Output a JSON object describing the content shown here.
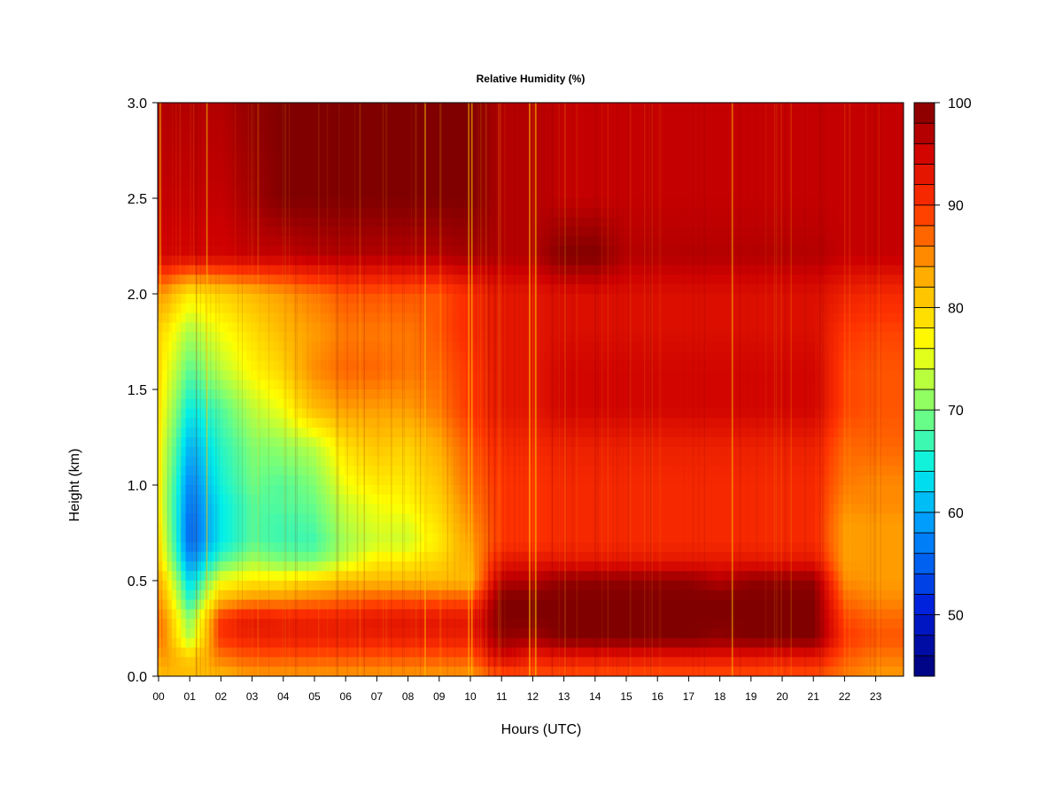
{
  "chart_data": {
    "type": "heatmap",
    "title": "Relative Humidity (%)",
    "xlabel": "Hours (UTC)",
    "ylabel": "Height (km)",
    "xlim": [
      0,
      24
    ],
    "ylim": [
      0.0,
      3.0
    ],
    "x_ticks": [
      "00",
      "01",
      "02",
      "03",
      "04",
      "05",
      "06",
      "07",
      "08",
      "09",
      "10",
      "11",
      "12",
      "13",
      "14",
      "15",
      "16",
      "17",
      "18",
      "19",
      "20",
      "21",
      "22",
      "23"
    ],
    "y_ticks": [
      "0.0",
      "0.5",
      "1.0",
      "1.5",
      "2.0",
      "2.5",
      "3.0"
    ],
    "hours": [
      0,
      1,
      2,
      3,
      4,
      5,
      6,
      7,
      8,
      9,
      10,
      11,
      12,
      13,
      14,
      15,
      16,
      17,
      18,
      19,
      20,
      21,
      22,
      23,
      24
    ],
    "heights_km": [
      0.0,
      0.1,
      0.2,
      0.3,
      0.4,
      0.5,
      0.6,
      0.7,
      0.8,
      0.9,
      1.0,
      1.2,
      1.4,
      1.6,
      1.8,
      2.0,
      2.2,
      2.5,
      3.0
    ],
    "rh_percent": [
      [
        82,
        82,
        82,
        84,
        84,
        84,
        84,
        84,
        84,
        84,
        84,
        88,
        88,
        88,
        88,
        88,
        88,
        88,
        88,
        88,
        88,
        88,
        86,
        84,
        84
      ],
      [
        85,
        80,
        86,
        88,
        88,
        88,
        88,
        88,
        88,
        88,
        88,
        95,
        92,
        93,
        93,
        93,
        93,
        93,
        93,
        93,
        93,
        93,
        88,
        86,
        86
      ],
      [
        88,
        72,
        90,
        92,
        92,
        92,
        92,
        92,
        92,
        92,
        92,
        99,
        98,
        100,
        100,
        100,
        100,
        100,
        99,
        100,
        100,
        100,
        90,
        88,
        88
      ],
      [
        88,
        70,
        90,
        93,
        92,
        92,
        92,
        93,
        93,
        93,
        93,
        100,
        100,
        100,
        100,
        100,
        100,
        100,
        100,
        100,
        100,
        100,
        89,
        87,
        87
      ],
      [
        86,
        65,
        82,
        85,
        85,
        86,
        87,
        88,
        88,
        88,
        88,
        100,
        100,
        100,
        100,
        100,
        100,
        100,
        100,
        100,
        100,
        100,
        87,
        85,
        85
      ],
      [
        84,
        62,
        76,
        78,
        78,
        80,
        82,
        82,
        82,
        82,
        82,
        97,
        97,
        99,
        99,
        99,
        99,
        99,
        97,
        99,
        99,
        99,
        85,
        84,
        84
      ],
      [
        80,
        58,
        68,
        72,
        70,
        70,
        74,
        78,
        78,
        80,
        83,
        93,
        93,
        93,
        93,
        93,
        93,
        93,
        93,
        93,
        93,
        93,
        84,
        84,
        84
      ],
      [
        79,
        55,
        64,
        68,
        67,
        67,
        72,
        74,
        74,
        78,
        84,
        90,
        90,
        91,
        91,
        91,
        91,
        91,
        91,
        91,
        91,
        91,
        84,
        84,
        84
      ],
      [
        78,
        55,
        64,
        68,
        67,
        68,
        73,
        75,
        75,
        79,
        85,
        90,
        90,
        91,
        91,
        91,
        91,
        91,
        91,
        91,
        91,
        91,
        84,
        84,
        84
      ],
      [
        77,
        56,
        64,
        68,
        68,
        69,
        74,
        76,
        77,
        80,
        86,
        90,
        90,
        91,
        91,
        91,
        91,
        91,
        91,
        91,
        91,
        91,
        85,
        85,
        85
      ],
      [
        77,
        57,
        65,
        69,
        68,
        70,
        76,
        78,
        78,
        81,
        87,
        90,
        90,
        91,
        91,
        91,
        91,
        91,
        91,
        91,
        91,
        91,
        86,
        85,
        85
      ],
      [
        77,
        60,
        66,
        70,
        71,
        73,
        79,
        81,
        80,
        83,
        88,
        91,
        91,
        92,
        92,
        92,
        92,
        92,
        92,
        92,
        92,
        92,
        87,
        87,
        87
      ],
      [
        78,
        64,
        68,
        73,
        76,
        82,
        84,
        84,
        84,
        86,
        90,
        93,
        93,
        95,
        95,
        95,
        95,
        95,
        95,
        95,
        95,
        95,
        89,
        88,
        88
      ],
      [
        79,
        68,
        73,
        77,
        80,
        85,
        87,
        87,
        86,
        87,
        90,
        93,
        93,
        95,
        95,
        95,
        95,
        95,
        95,
        95,
        95,
        95,
        89,
        88,
        88
      ],
      [
        80,
        72,
        76,
        79,
        82,
        84,
        86,
        86,
        86,
        88,
        91,
        93,
        93,
        94,
        94,
        94,
        94,
        94,
        94,
        94,
        94,
        94,
        90,
        89,
        89
      ],
      [
        85,
        78,
        80,
        82,
        84,
        86,
        88,
        88,
        88,
        88,
        91,
        93,
        93,
        94,
        94,
        94,
        94,
        94,
        94,
        94,
        94,
        94,
        92,
        91,
        91
      ],
      [
        95,
        95,
        95,
        96,
        96,
        97,
        97,
        97,
        97,
        97,
        98,
        97,
        97,
        100,
        100,
        97,
        97,
        97,
        97,
        97,
        97,
        97,
        96,
        96,
        96
      ],
      [
        96,
        96,
        96,
        98,
        100,
        100,
        100,
        100,
        100,
        100,
        100,
        97,
        97,
        96,
        96,
        96,
        96,
        96,
        96,
        96,
        96,
        96,
        96,
        96,
        96
      ],
      [
        97,
        97,
        97,
        99,
        100,
        100,
        100,
        100,
        100,
        100,
        100,
        97,
        97,
        96,
        96,
        96,
        96,
        96,
        96,
        96,
        96,
        96,
        96,
        96,
        96
      ]
    ],
    "colorbar": {
      "min": 44,
      "max": 100,
      "step": 2,
      "tick_labels": [
        "50",
        "60",
        "70",
        "80",
        "90",
        "100"
      ]
    }
  }
}
